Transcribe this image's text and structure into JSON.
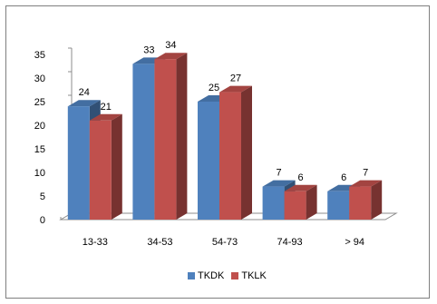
{
  "colors": {
    "TKDK": "#4f81bd",
    "TKLK": "#c0504d"
  },
  "chart_data": {
    "type": "bar",
    "categories": [
      "13-33",
      "34-53",
      "54-73",
      "74-93",
      "> 94"
    ],
    "series": [
      {
        "name": "TKDK",
        "values": [
          24,
          33,
          25,
          7,
          6
        ]
      },
      {
        "name": "TKLK",
        "values": [
          21,
          34,
          27,
          6,
          7
        ]
      }
    ],
    "yticks": [
      "0",
      "5",
      "10",
      "15",
      "20",
      "25",
      "30",
      "35"
    ],
    "ylim": [
      0,
      35
    ],
    "legend_position": "bottom",
    "grid": false,
    "three_d": true
  }
}
